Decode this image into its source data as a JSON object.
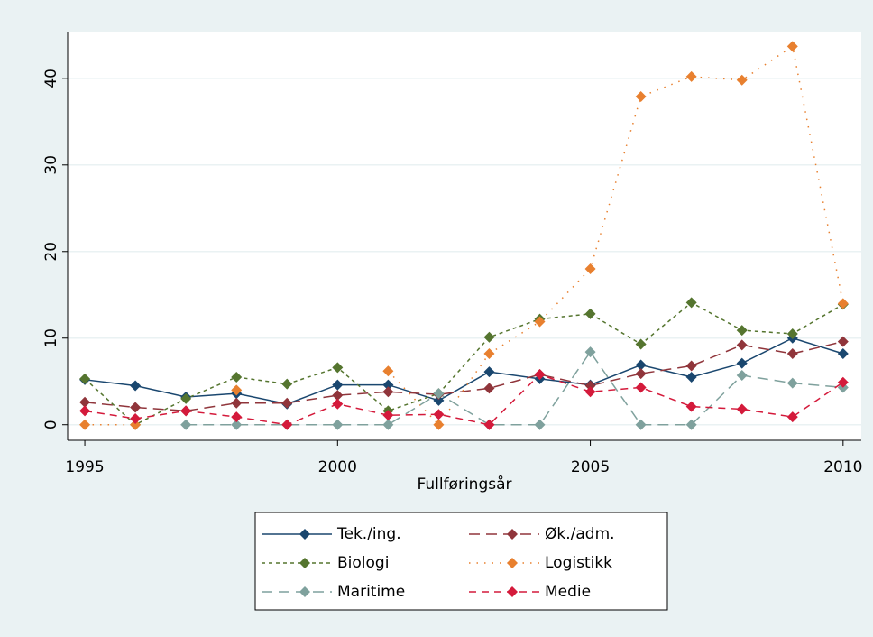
{
  "chart_data": {
    "type": "line",
    "x_label": "Fullføringsår",
    "x": [
      1995,
      1996,
      1997,
      1998,
      1999,
      2000,
      2001,
      2002,
      2003,
      2004,
      2005,
      2006,
      2007,
      2008,
      2009,
      2010
    ],
    "xlim": [
      1994.66,
      2010.36
    ],
    "xticks": [
      1995,
      2000,
      2005,
      2010
    ],
    "ylim": [
      -1.8,
      45.4
    ],
    "yticks": [
      0,
      10,
      20,
      30,
      40
    ],
    "grid": true,
    "legend": "bottom",
    "series": [
      {
        "name": "Tek./ing.",
        "color": "#1a476f",
        "dash": "solid",
        "values": [
          5.2,
          4.5,
          3.2,
          3.6,
          2.4,
          4.6,
          4.6,
          2.8,
          6.1,
          5.3,
          4.6,
          6.9,
          5.5,
          7.1,
          10.0,
          8.2
        ]
      },
      {
        "name": "Øk./adm.",
        "color": "#90353b",
        "dash": "longdash",
        "values": [
          2.6,
          2.0,
          1.6,
          2.5,
          2.5,
          3.4,
          3.8,
          3.5,
          4.2,
          5.8,
          4.5,
          5.9,
          6.8,
          9.2,
          8.2,
          9.6
        ]
      },
      {
        "name": "Biologi",
        "color": "#55752f",
        "dash": "shortdash",
        "values": [
          5.3,
          0.0,
          3.0,
          5.5,
          4.7,
          6.6,
          1.6,
          3.6,
          10.1,
          12.2,
          12.8,
          9.3,
          14.1,
          10.9,
          10.5,
          13.9
        ]
      },
      {
        "name": "Logistikk",
        "color": "#e8802f",
        "dash": "dot",
        "values": [
          0.0,
          0.0,
          null,
          4.0,
          null,
          null,
          6.2,
          0.0,
          8.2,
          11.9,
          18.0,
          37.9,
          40.2,
          39.8,
          43.7,
          14.0
        ]
      },
      {
        "name": "Maritime",
        "color": "#7fa19d",
        "dash": "longdash",
        "values": [
          null,
          null,
          0.0,
          0.0,
          0.0,
          0.0,
          0.0,
          3.6,
          0.0,
          0.0,
          8.4,
          0.0,
          0.0,
          5.7,
          4.8,
          4.3
        ]
      },
      {
        "name": "Medie",
        "color": "#d41a3b",
        "dash": "dash",
        "values": [
          1.6,
          0.7,
          1.6,
          0.9,
          0.0,
          2.4,
          1.1,
          1.2,
          0.0,
          5.8,
          3.8,
          4.3,
          2.1,
          1.8,
          0.9,
          4.9
        ]
      }
    ]
  }
}
